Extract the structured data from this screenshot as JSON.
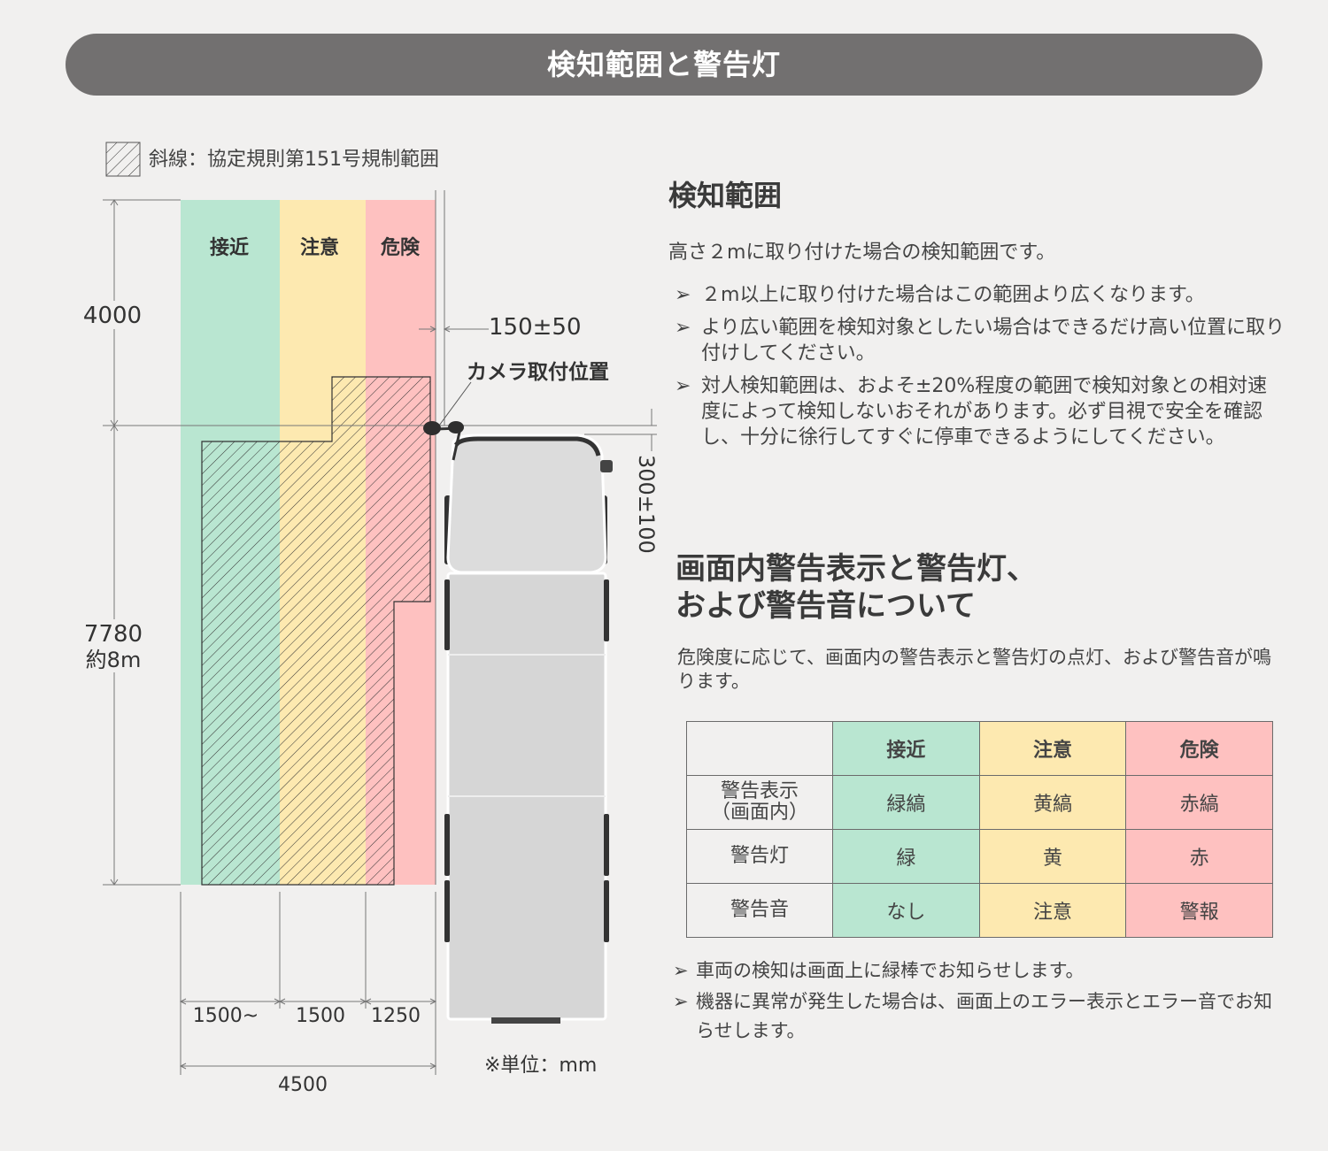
{
  "banner": {
    "title": "検知範囲と警告灯"
  },
  "legend": {
    "text": "斜線：協定規則第151号規制範囲"
  },
  "zones": {
    "approach": "接近",
    "caution": "注意",
    "danger": "危険"
  },
  "dimensions": {
    "height_top": "4000",
    "height_bottom": "7780",
    "height_bottom_approx": "約8m",
    "camera_offset": "150±50",
    "camera_height_offset": "300±100",
    "width_1": "1500~",
    "width_2": "1500",
    "width_3": "1250",
    "width_total": "4500",
    "unit_note": "※単位：mm"
  },
  "camera_label": "カメラ取付位置",
  "colors": {
    "approach": "#b9e6d1",
    "caution": "#fde9b0",
    "danger": "#fec1c0",
    "banner": "#727070"
  },
  "detection": {
    "heading": "検知範囲",
    "intro": "高さ２mに取り付けた場合の検知範囲です。",
    "bullets": [
      "２m以上に取り付けた場合はこの範囲より広くなります。",
      "より広い範囲を検知対象としたい場合はできるだけ高い位置に取り付けしてください。",
      "対人検知範囲は、およそ±20%程度の範囲で検知対象との相対速度によって検知しないおそれがあります。必ず目視で安全を確認し、十分に徐行してすぐに停車できるようにしてください。"
    ]
  },
  "warning": {
    "heading_line1": "画面内警告表示と警告灯、",
    "heading_line2": "および警告音について",
    "intro": "危険度に応じて、画面内の警告表示と警告灯の点灯、および警告音が鳴ります。",
    "table": {
      "headers": [
        "",
        "接近",
        "注意",
        "危険"
      ],
      "rows": [
        {
          "label_line1": "警告表示",
          "label_line2": "（画面内）",
          "approach": "緑縞",
          "caution": "黄縞",
          "danger": "赤縞"
        },
        {
          "label_line1": "警告灯",
          "label_line2": "",
          "approach": "緑",
          "caution": "黄",
          "danger": "赤"
        },
        {
          "label_line1": "警告音",
          "label_line2": "",
          "approach": "なし",
          "caution": "注意",
          "danger": "警報"
        }
      ]
    },
    "notes": [
      "車両の検知は画面上に緑棒でお知らせします。",
      "機器に異常が発生した場合は、画面上のエラー表示とエラー音でお知らせします。"
    ],
    "arrow_glyph": "➢"
  }
}
